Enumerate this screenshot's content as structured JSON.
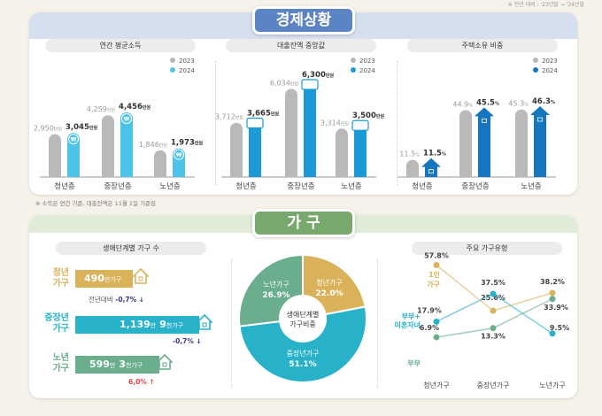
{
  "top_note": "※ 전년 대비 : '23년말 → '24년말",
  "economy": {
    "title": "경제상황",
    "note": "※ 소득은 연간 기준, 대출잔액은 11월 1일 기준임",
    "legend": [
      "2023",
      "2024"
    ],
    "colors": {
      "gray": "#b9b9b9",
      "income": "#4ec3e8",
      "loan": "#1a9ad6",
      "house": "#1676c0"
    }
  },
  "chart_data": [
    {
      "type": "bar",
      "title": "연간 평균소득",
      "categories": [
        "청년층",
        "중장년층",
        "노년층"
      ],
      "series": [
        {
          "name": "2023",
          "values": [
            2950,
            4259,
            1846
          ]
        },
        {
          "name": "2024",
          "values": [
            3045,
            4456,
            1973
          ]
        }
      ],
      "labels_2023": [
        "2,950",
        "4,259",
        "1,846"
      ],
      "labels_2024": [
        "3,045",
        "4,456",
        "1,973"
      ],
      "unit": "만원",
      "icon": "won-coin-icon"
    },
    {
      "type": "bar",
      "title": "대출잔액 중앙값",
      "categories": [
        "청년층",
        "중장년층",
        "노년층"
      ],
      "series": [
        {
          "name": "2023",
          "values": [
            3712,
            6034,
            3314
          ]
        },
        {
          "name": "2024",
          "values": [
            3665,
            6300,
            3500
          ]
        }
      ],
      "labels_2023": [
        "3,712",
        "6,034",
        "3,314"
      ],
      "labels_2024": [
        "3,665",
        "6,300",
        "3,500"
      ],
      "unit": "만원",
      "icon": "card-icon"
    },
    {
      "type": "bar",
      "title": "주택소유 비중",
      "categories": [
        "청년층",
        "중장년층",
        "노년층"
      ],
      "series": [
        {
          "name": "2023",
          "values": [
            11.5,
            44.9,
            45.3
          ]
        },
        {
          "name": "2024",
          "values": [
            11.5,
            45.5,
            46.3
          ]
        }
      ],
      "labels_2023": [
        "11.5",
        "44.9",
        "45.3"
      ],
      "labels_2024": [
        "11.5",
        "45.5",
        "46.3"
      ],
      "unit": "%",
      "icon": "house-icon"
    },
    {
      "type": "pie",
      "title": "생애단계별 가구비중",
      "center_label": "생애단계별\n가구비중",
      "slices": [
        {
          "label": "청년가구",
          "value": 22.0,
          "text": "22.0%",
          "color": "#d9b25a"
        },
        {
          "label": "중장년가구",
          "value": 51.1,
          "text": "51.1%",
          "color": "#27b2c9"
        },
        {
          "label": "노년가구",
          "value": 26.9,
          "text": "26.9%",
          "color": "#6aae8e"
        }
      ]
    },
    {
      "type": "line",
      "title": "주요 가구유형",
      "categories": [
        "청년가구",
        "중장년가구",
        "노년가구"
      ],
      "series": [
        {
          "name": "1인 가구",
          "values": [
            57.8,
            25.6,
            38.2
          ],
          "color": "#d9b25a",
          "labels": [
            "57.8%",
            "25.6%",
            "38.2%"
          ]
        },
        {
          "name": "부부+ 미혼자녀",
          "values": [
            17.9,
            37.5,
            9.5
          ],
          "color": "#27b2c9",
          "labels": [
            "17.9%",
            "37.5%",
            "9.5%"
          ]
        },
        {
          "name": "부부",
          "values": [
            6.9,
            13.3,
            33.9
          ],
          "color": "#6aae8e",
          "labels": [
            "6.9%",
            "13.3%",
            "33.9%"
          ]
        }
      ]
    }
  ],
  "households": {
    "title": "가 구",
    "count_title": "생애단계별 가구 수",
    "rows": [
      {
        "label1": "청년",
        "label2": "가구",
        "num": "490",
        "unit": "만가구",
        "change_prefix": "전년대비",
        "change": "-0,7%",
        "dir": "down",
        "color": "#d9b25a"
      },
      {
        "label1": "중장년",
        "label2": "가구",
        "num": "1,139",
        "unit": "만",
        "num2": "9",
        "unit2": "천가구",
        "change": "-0,7%",
        "dir": "down",
        "color": "#27b2c9"
      },
      {
        "label1": "노년",
        "label2": "가구",
        "num": "599",
        "unit": "만",
        "num2": "3",
        "unit2": "천가구",
        "change": "6,0%",
        "dir": "up",
        "color": "#6aae8e"
      }
    ]
  }
}
